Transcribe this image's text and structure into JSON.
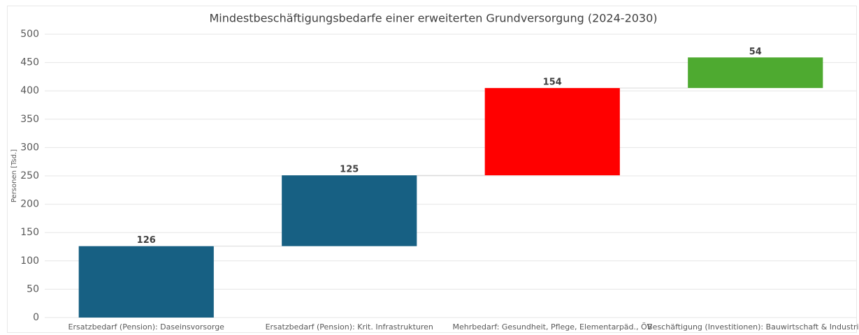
{
  "chart_data": {
    "type": "waterfall",
    "title": "Mindestbeschäftigungsbedarfe einer erweiterten Grundversorgung (2024-2030)",
    "y_label": "Personen [Tsd.]",
    "categories": [
      "Ersatzbedarf (Pension): Daseinsvorsorge",
      "Ersatzbedarf (Pension): Krit. Infrastrukturen",
      "Mehrbedarf: Gesundheit, Pflege, Elementarpäd., ÖV",
      "Beschäftigung (Investitionen): Bauwirtschaft & Industrie"
    ],
    "values": [
      126,
      125,
      154,
      54
    ],
    "colors": [
      "#176083",
      "#176083",
      "#ff0000",
      "#4eaa30"
    ],
    "ylim": [
      0,
      500
    ],
    "yticks": [
      0,
      50,
      100,
      150,
      200,
      250,
      300,
      350,
      400,
      450,
      500
    ],
    "grid": true
  }
}
